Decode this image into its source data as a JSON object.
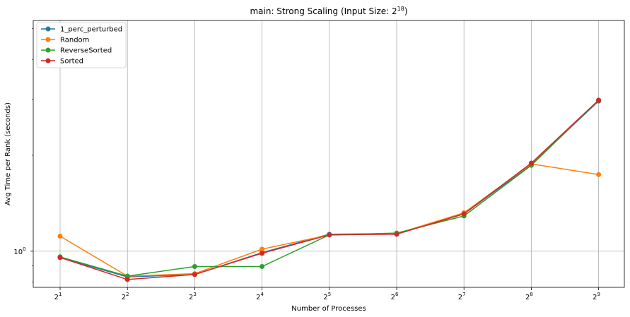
{
  "chart_data": {
    "type": "line",
    "title": "main: Strong Scaling (Input Size: 2",
    "title_sup": "18",
    "title_end": ")",
    "xlabel": "Number of Processes",
    "ylabel": "Avg Time per Rank (seconds)",
    "x": [
      2,
      4,
      8,
      16,
      32,
      64,
      128,
      256,
      512
    ],
    "x_tick_labels": [
      {
        "base": "2",
        "exp": "1"
      },
      {
        "base": "2",
        "exp": "2"
      },
      {
        "base": "2",
        "exp": "3"
      },
      {
        "base": "2",
        "exp": "4"
      },
      {
        "base": "2",
        "exp": "5"
      },
      {
        "base": "2",
        "exp": "6"
      },
      {
        "base": "2",
        "exp": "7"
      },
      {
        "base": "2",
        "exp": "8"
      },
      {
        "base": "2",
        "exp": "9"
      }
    ],
    "y_scale": "log",
    "y_tick": {
      "base": "10",
      "exp": "0",
      "value": 1
    },
    "ylim": [
      0.77,
      5.3
    ],
    "grid": true,
    "legend_position": "top-left",
    "series": [
      {
        "name": "1_perc_perturbed",
        "color": "#1f77b4",
        "values": [
          0.955,
          0.83,
          0.845,
          0.99,
          1.13,
          1.135,
          1.31,
          1.87,
          2.96
        ]
      },
      {
        "name": "Random",
        "color": "#ff7f0e",
        "values": [
          1.115,
          0.835,
          0.85,
          1.015,
          1.125,
          1.135,
          1.32,
          1.88,
          1.74
        ]
      },
      {
        "name": "ReverseSorted",
        "color": "#2ca02c",
        "values": [
          0.96,
          0.835,
          0.895,
          0.895,
          1.125,
          1.14,
          1.29,
          1.86,
          2.98
        ]
      },
      {
        "name": "Sorted",
        "color": "#d62728",
        "values": [
          0.955,
          0.815,
          0.845,
          0.985,
          1.125,
          1.13,
          1.31,
          1.89,
          2.98
        ]
      }
    ]
  }
}
